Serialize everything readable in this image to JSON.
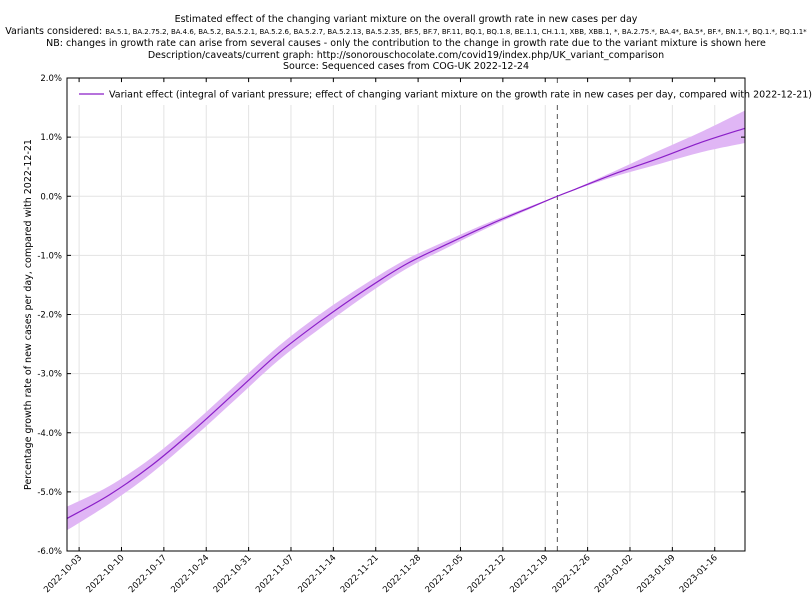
{
  "chart_data": {
    "type": "line",
    "title": "Estimated effect of the changing variant mixture on the overall growth rate in new cases per day",
    "variants_prefix": "Variants considered:",
    "variants_list": "BA.5.1, BA.2.75.2, BA.4.6, BA.5.2, BA.5.2.1, BA.5.2.6, BA.5.2.7, BA.5.2.13, BA.5.2.35, BF.5, BF.7, BF.11, BQ.1, BQ.1.8, BE.1.1, CH.1.1, XBB, XBB.1, *, BA.2.75.*, BA.4*, BA.5*, BF.*, BN.1.*, BQ.1.*, BQ.1.1*",
    "note": "NB: changes in growth rate can arise from several causes - only the contribution to the change in growth rate due to the variant mixture is shown here",
    "description": "Description/caveats/current graph: http://sonorouschocolate.com/covid19/index.php/UK_variant_comparison",
    "source": "Source: Sequenced cases from COG-UK 2022-12-24",
    "ylabel": "Percentage growth rate of new cases per day, compared with 2022-12-21",
    "xlabel": "",
    "ylim": [
      -6.0,
      2.0
    ],
    "xlim": [
      "2022-10-01",
      "2023-01-21"
    ],
    "y_ticks": [
      {
        "value": 2.0,
        "label": "2.0%"
      },
      {
        "value": 1.0,
        "label": "1.0%"
      },
      {
        "value": 0.0,
        "label": "0.0%"
      },
      {
        "value": -1.0,
        "label": "-1.0%"
      },
      {
        "value": -2.0,
        "label": "-2.0%"
      },
      {
        "value": -3.0,
        "label": "-3.0%"
      },
      {
        "value": -4.0,
        "label": "-4.0%"
      },
      {
        "value": -5.0,
        "label": "-5.0%"
      },
      {
        "value": -6.0,
        "label": "-6.0%"
      }
    ],
    "x_ticks": [
      "2022-10-03",
      "2022-10-10",
      "2022-10-17",
      "2022-10-24",
      "2022-10-31",
      "2022-11-07",
      "2022-11-14",
      "2022-11-21",
      "2022-11-28",
      "2022-12-05",
      "2022-12-12",
      "2022-12-19",
      "2022-12-26",
      "2023-01-02",
      "2023-01-09",
      "2023-01-16"
    ],
    "reference_date": "2022-12-21",
    "grid": true,
    "legend_position": "top-left",
    "series": [
      {
        "name": "Variant effect (integral of variant pressure; effect of changing variant mixture on the growth rate in new cases per day, compared with 2022-12-21)",
        "color": "#8b1fc8",
        "band_color": "#e0b6f5",
        "x": [
          "2022-10-01",
          "2022-10-08",
          "2022-10-15",
          "2022-10-22",
          "2022-10-29",
          "2022-11-05",
          "2022-11-12",
          "2022-11-19",
          "2022-11-26",
          "2022-12-03",
          "2022-12-10",
          "2022-12-17",
          "2022-12-21",
          "2022-12-24",
          "2022-12-31",
          "2023-01-07",
          "2023-01-14",
          "2023-01-21"
        ],
        "y": [
          -5.45,
          -5.05,
          -4.55,
          -3.95,
          -3.3,
          -2.65,
          -2.1,
          -1.6,
          -1.15,
          -0.8,
          -0.47,
          -0.17,
          0.0,
          0.12,
          0.4,
          0.65,
          0.92,
          1.15
        ],
        "lower": [
          -5.65,
          -5.2,
          -4.68,
          -4.07,
          -3.42,
          -2.77,
          -2.22,
          -1.7,
          -1.23,
          -0.86,
          -0.51,
          -0.19,
          0.0,
          0.11,
          0.35,
          0.55,
          0.75,
          0.9
        ],
        "upper": [
          -5.25,
          -4.9,
          -4.42,
          -3.83,
          -3.18,
          -2.53,
          -1.98,
          -1.5,
          -1.07,
          -0.74,
          -0.43,
          -0.15,
          0.0,
          0.13,
          0.45,
          0.78,
          1.1,
          1.45
        ]
      }
    ]
  }
}
